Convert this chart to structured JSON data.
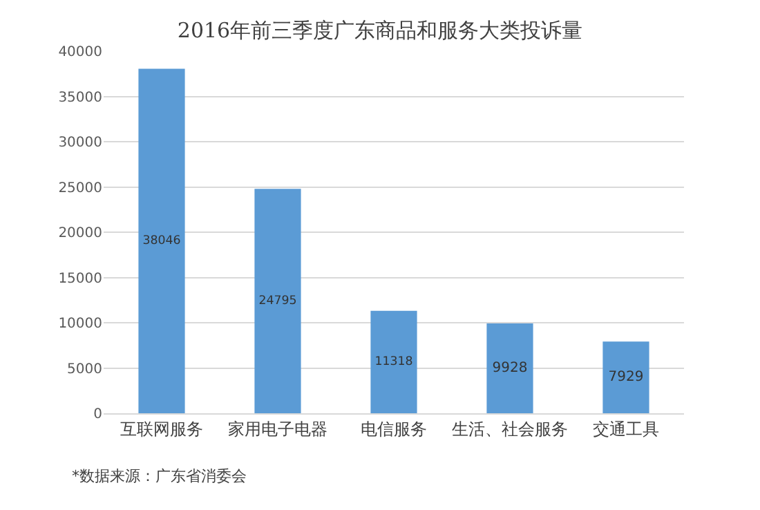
{
  "chart_data": {
    "type": "bar",
    "title": "2016年前三季度广东商品和服务大类投诉量",
    "categories": [
      "互联网服务",
      "家用电子电器",
      "电信服务",
      "生活、社会服务",
      "交通工具"
    ],
    "values": [
      38046,
      24795,
      11318,
      9928,
      7929
    ],
    "color": "#5b9bd5",
    "ylim": [
      0,
      40000
    ],
    "yticks": [
      0,
      5000,
      10000,
      15000,
      20000,
      25000,
      30000,
      35000,
      40000
    ],
    "grid": "y",
    "data_labels": true,
    "legend": false,
    "annotations": [
      "*数据来源：广东省消委会"
    ]
  }
}
